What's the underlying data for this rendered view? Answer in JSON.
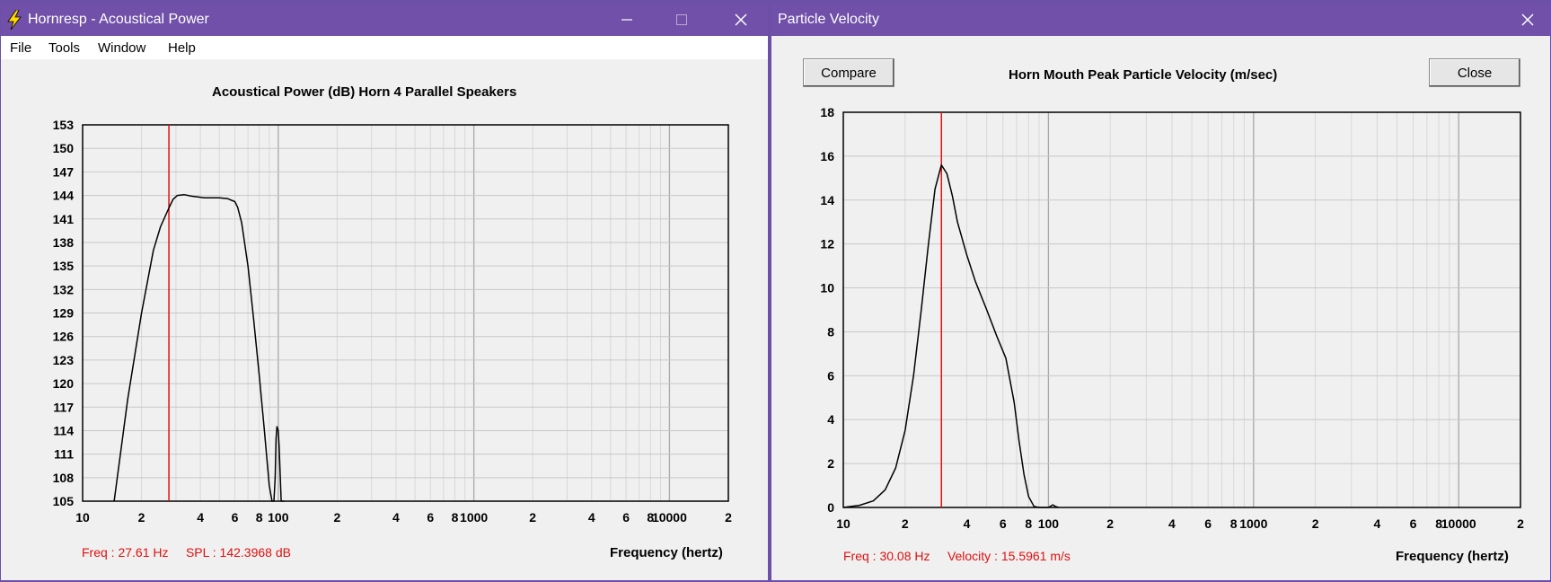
{
  "window1": {
    "title": "Hornresp - Acoustical Power",
    "menu": {
      "file": "File",
      "tools": "Tools",
      "window": "Window",
      "help": "Help"
    },
    "chart_title": "Acoustical Power (dB)    Horn    4 Parallel Speakers",
    "readout": "Freq : 27.61 Hz     SPL : 142.3968 dB",
    "xlabel": "Frequency (hertz)"
  },
  "window2": {
    "title": "Particle Velocity",
    "compare_label": "Compare",
    "close_label": "Close",
    "chart_title": "Horn Mouth Peak Particle Velocity (m/sec)",
    "readout": "Freq : 30.08 Hz     Velocity : 15.5961 m/s",
    "xlabel": "Frequency (hertz)"
  },
  "colors": {
    "titlebar": "#7050a8",
    "curve": "#000000",
    "cursor": "#e01010",
    "grid": "#c8c8c8"
  },
  "chart_data": [
    {
      "type": "line",
      "title": "Acoustical Power (dB)    Horn    4 Parallel Speakers",
      "xlabel": "Frequency (hertz)",
      "ylabel": "",
      "xscale": "log",
      "xlim": [
        10,
        20000
      ],
      "ylim": [
        105,
        153
      ],
      "yticks": [
        153,
        150,
        147,
        144,
        141,
        138,
        135,
        132,
        129,
        126,
        123,
        120,
        117,
        114,
        111,
        108,
        105
      ],
      "xtick_labels": [
        "10",
        "2",
        "4",
        "6",
        "8",
        "100",
        "2",
        "4",
        "6",
        "8",
        "1000",
        "2",
        "4",
        "6",
        "8",
        "10000",
        "2"
      ],
      "xtick_values": [
        10,
        20,
        40,
        60,
        80,
        100,
        200,
        400,
        600,
        800,
        1000,
        2000,
        4000,
        6000,
        8000,
        10000,
        20000
      ],
      "cursor_x": 27.61,
      "series": [
        {
          "x": [
            14.5,
            17,
            20,
            23,
            25,
            27.61,
            29,
            30.5,
            33,
            36,
            42,
            50,
            55,
            60,
            62,
            65,
            70,
            75,
            80,
            85,
            90,
            93,
            95,
            96.5,
            97.5,
            98.5,
            100,
            101,
            102.5,
            103.5,
            104.5,
            106,
            107.5
          ],
          "y": [
            105,
            118,
            129,
            137,
            140,
            142.4,
            143.5,
            144,
            144.1,
            143.9,
            143.7,
            143.7,
            143.6,
            143.2,
            142.5,
            140.5,
            135,
            128,
            121,
            114,
            107,
            105,
            105,
            108,
            113,
            114.5,
            114,
            112,
            108,
            105,
            105,
            105,
            105
          ]
        }
      ]
    },
    {
      "type": "line",
      "title": "Horn Mouth Peak Particle Velocity (m/sec)",
      "xlabel": "Frequency (hertz)",
      "ylabel": "",
      "xscale": "log",
      "xlim": [
        10,
        20000
      ],
      "ylim": [
        0,
        18
      ],
      "yticks": [
        18,
        16,
        14,
        12,
        10,
        8,
        6,
        4,
        2,
        0
      ],
      "xtick_labels": [
        "10",
        "2",
        "4",
        "6",
        "8",
        "100",
        "2",
        "4",
        "6",
        "8",
        "1000",
        "2",
        "4",
        "6",
        "8",
        "10000",
        "2"
      ],
      "xtick_values": [
        10,
        20,
        40,
        60,
        80,
        100,
        200,
        400,
        600,
        800,
        1000,
        2000,
        4000,
        6000,
        8000,
        10000,
        20000
      ],
      "cursor_x": 30.08,
      "series": [
        {
          "x": [
            10,
            12,
            14,
            16,
            18,
            20,
            22,
            24,
            26,
            28,
            30.08,
            32,
            34,
            36,
            40,
            44,
            50,
            56,
            62,
            68,
            72,
            76,
            80,
            85,
            90,
            95,
            100,
            105,
            108,
            112
          ],
          "y": [
            0,
            0.1,
            0.3,
            0.8,
            1.8,
            3.5,
            6,
            9,
            12,
            14.5,
            15.6,
            15.2,
            14.2,
            13,
            11.5,
            10.3,
            9,
            7.8,
            6.8,
            4.8,
            3,
            1.5,
            0.5,
            0.05,
            0,
            0,
            0,
            0.12,
            0.05,
            0
          ]
        }
      ]
    }
  ]
}
